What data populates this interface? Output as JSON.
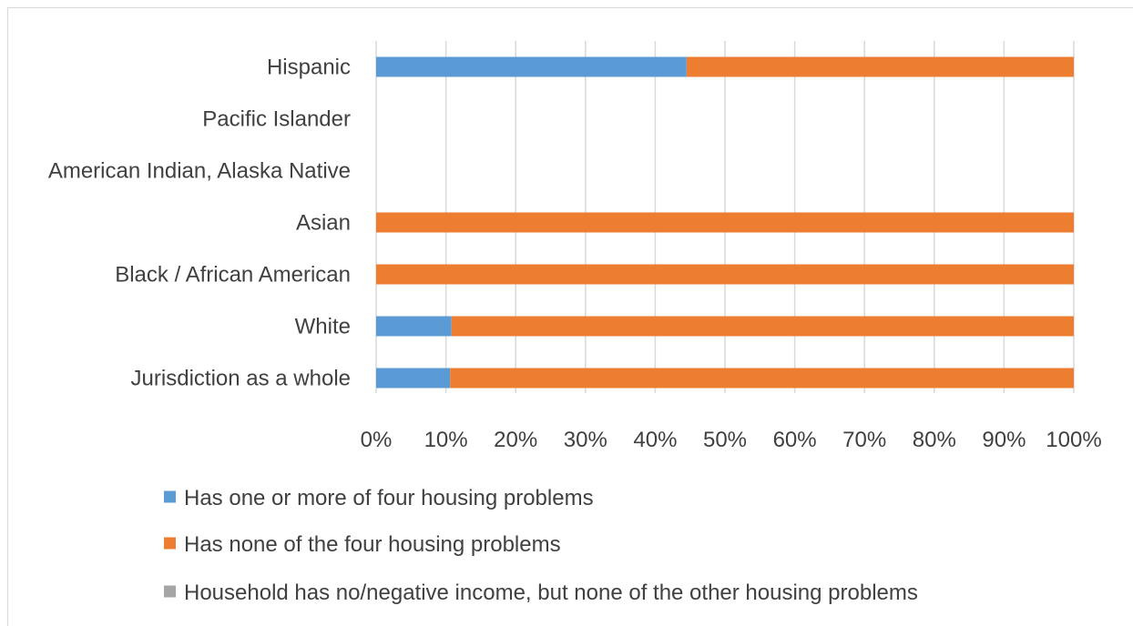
{
  "chart_data": {
    "type": "bar",
    "orientation": "horizontal",
    "stacking": "percent",
    "categories": [
      "Hispanic",
      "Pacific Islander",
      "American Indian, Alaska Native",
      "Asian",
      "Black / African American",
      "White",
      "Jurisdiction as a whole"
    ],
    "series": [
      {
        "name": "Has one or more of four housing problems",
        "color": "#5b9bd5",
        "values": [
          44.5,
          0,
          0,
          0,
          0,
          10.8,
          10.6
        ]
      },
      {
        "name": "Has none of the four housing problems",
        "color": "#ed7d31",
        "values": [
          55.5,
          0,
          0,
          100,
          100,
          89.2,
          89.4
        ]
      },
      {
        "name": "Household has no/negative income, but none of the other housing problems",
        "color": "#a5a5a5",
        "values": [
          0,
          0,
          0,
          0,
          0,
          0,
          0
        ]
      }
    ],
    "xlim": [
      0,
      100
    ],
    "xticks": [
      "0%",
      "10%",
      "20%",
      "30%",
      "40%",
      "50%",
      "60%",
      "70%",
      "80%",
      "90%",
      "100%"
    ],
    "grid": true,
    "legend_position": "bottom"
  }
}
